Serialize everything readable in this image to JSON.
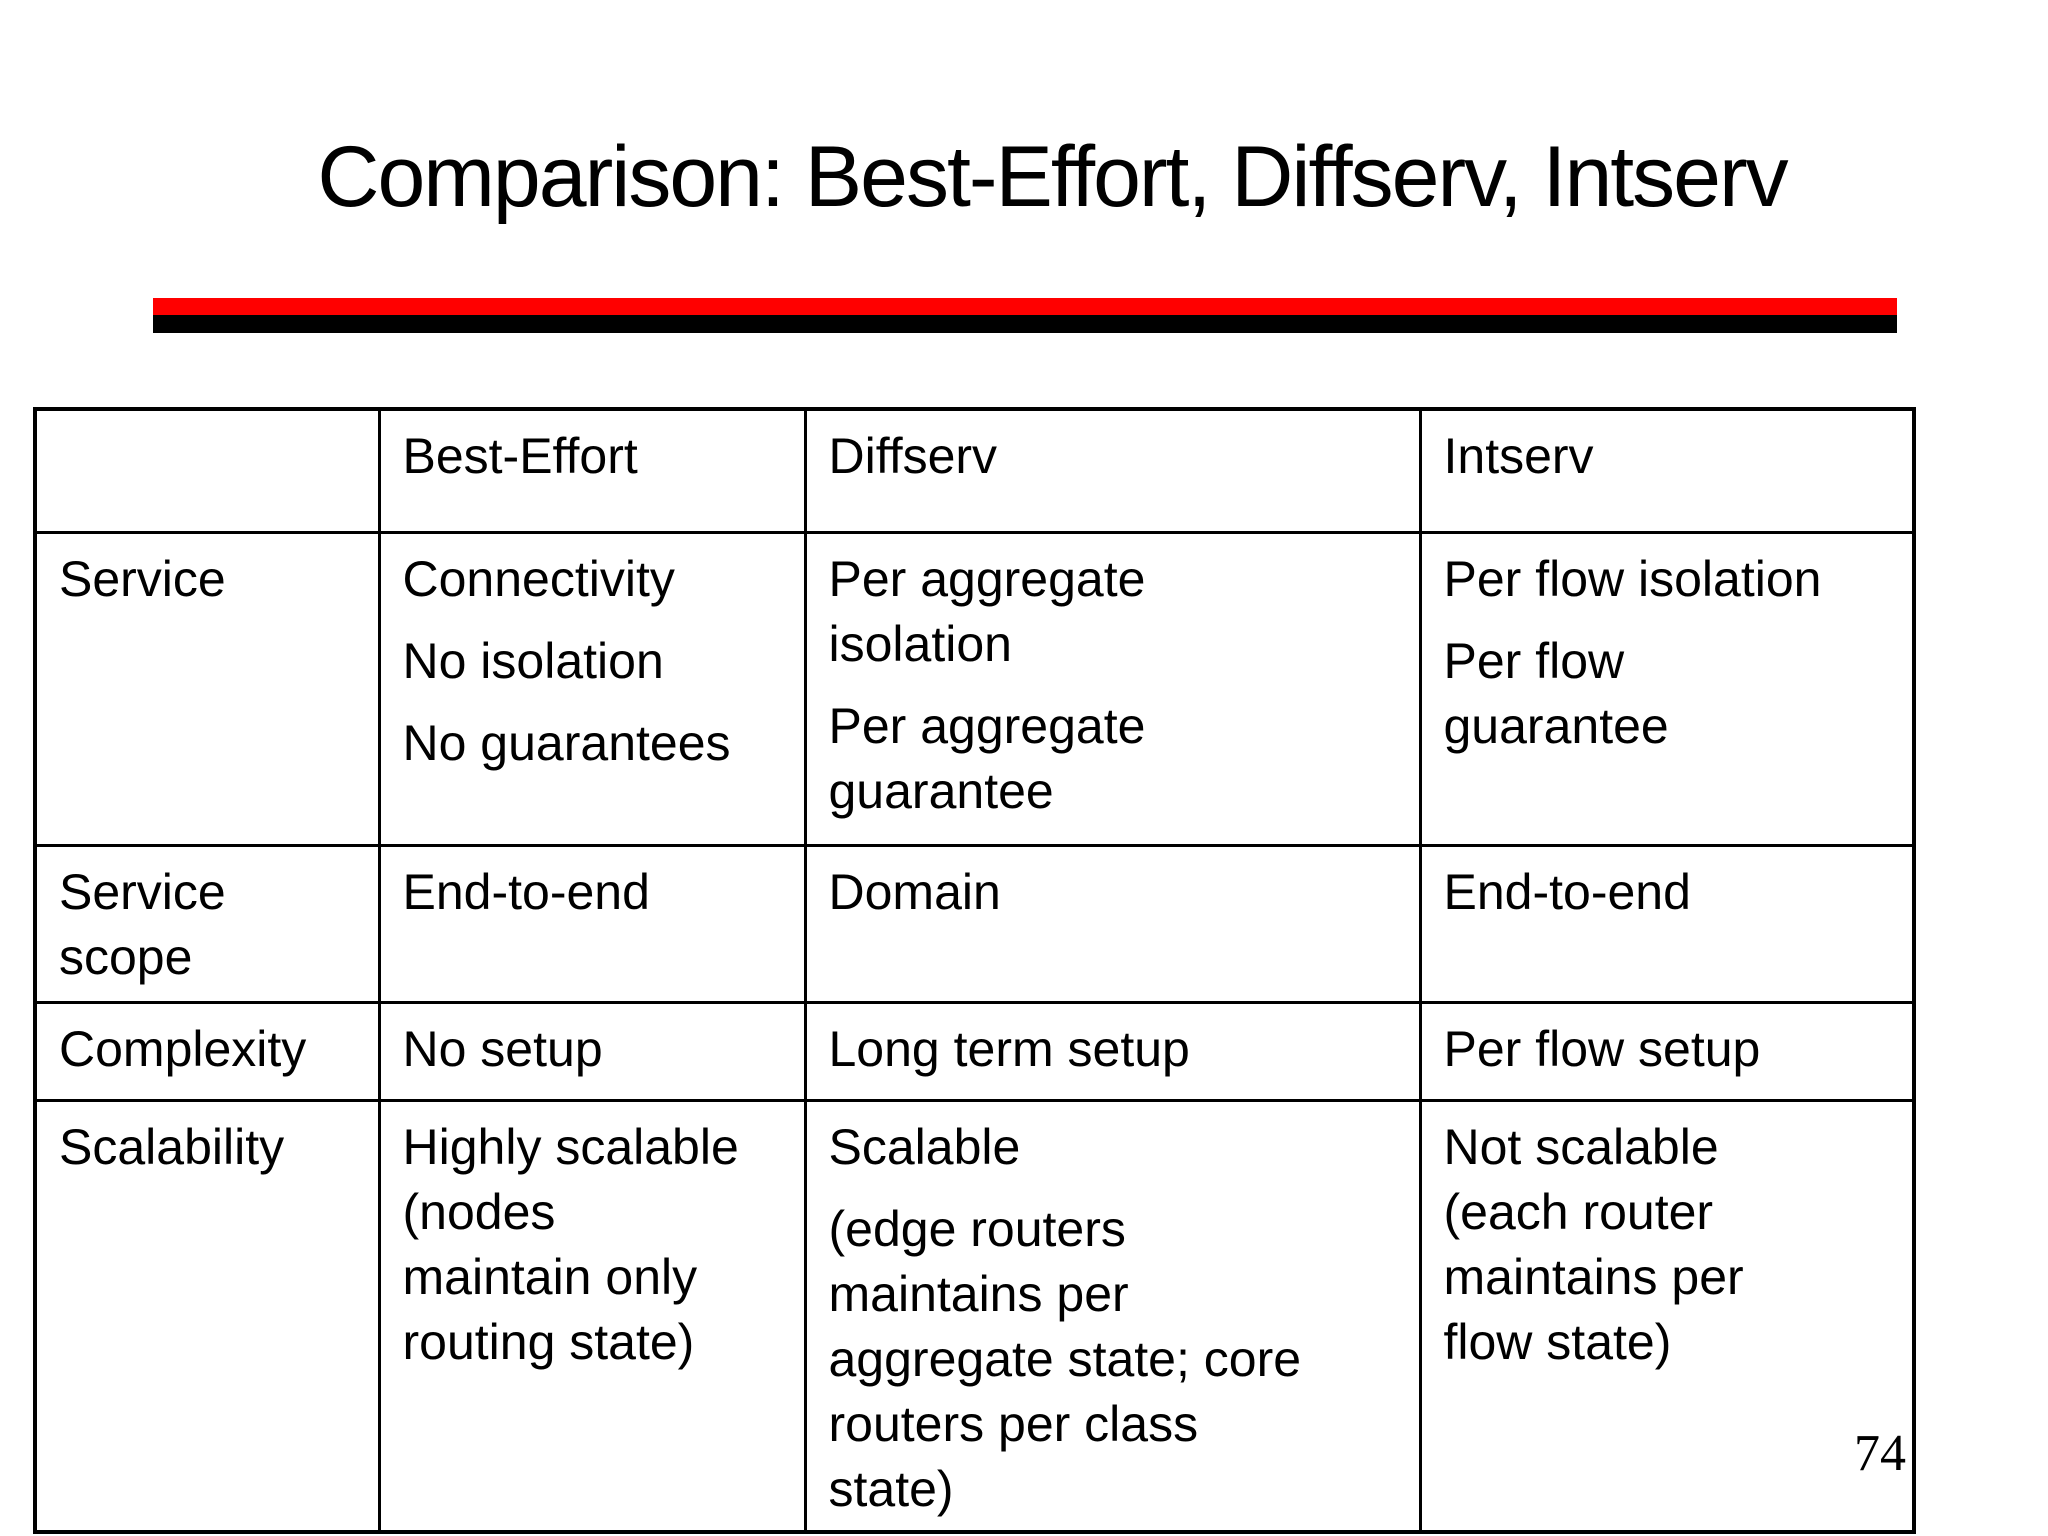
{
  "title": "Comparison: Best-Effort, Diffserv, Intserv",
  "page_number": "74",
  "colors": {
    "divider_red": "#ff0000",
    "divider_black": "#000000",
    "table_border": "#000000",
    "background": "#ffffff",
    "text": "#000000"
  },
  "table": {
    "header": [
      [
        [
          ""
        ]
      ],
      [
        [
          "Best-Effort"
        ]
      ],
      [
        [
          "Diffserv"
        ]
      ],
      [
        [
          "Intserv"
        ]
      ]
    ],
    "rows": [
      {
        "key": "service",
        "cells": [
          [
            [
              "Service"
            ]
          ],
          [
            [
              "Connectivity"
            ],
            [
              "No isolation"
            ],
            [
              "No guarantees"
            ]
          ],
          [
            [
              "Per aggregate",
              "isolation"
            ],
            [
              "Per aggregate",
              "guarantee"
            ]
          ],
          [
            [
              "Per flow isolation"
            ],
            [
              "Per flow",
              "guarantee"
            ]
          ]
        ]
      },
      {
        "key": "scope",
        "cells": [
          [
            [
              "Service",
              "scope"
            ]
          ],
          [
            [
              "End-to-end"
            ]
          ],
          [
            [
              "Domain"
            ]
          ],
          [
            [
              "End-to-end"
            ]
          ]
        ]
      },
      {
        "key": "complexity",
        "cells": [
          [
            [
              "Complexity"
            ]
          ],
          [
            [
              "No setup"
            ]
          ],
          [
            [
              "Long term setup"
            ]
          ],
          [
            [
              "Per flow setup"
            ]
          ]
        ]
      },
      {
        "key": "scalability",
        "cells": [
          [
            [
              "Scalability"
            ]
          ],
          [
            [
              "Highly scalable",
              "(nodes",
              "maintain only",
              "routing state)"
            ]
          ],
          [
            [
              "Scalable"
            ],
            [
              "(edge routers",
              "maintains per",
              "aggregate state; core",
              "routers per class",
              "state)"
            ]
          ],
          [
            [
              "Not scalable",
              "(each router",
              "maintains per",
              "flow state)"
            ]
          ]
        ]
      }
    ]
  }
}
